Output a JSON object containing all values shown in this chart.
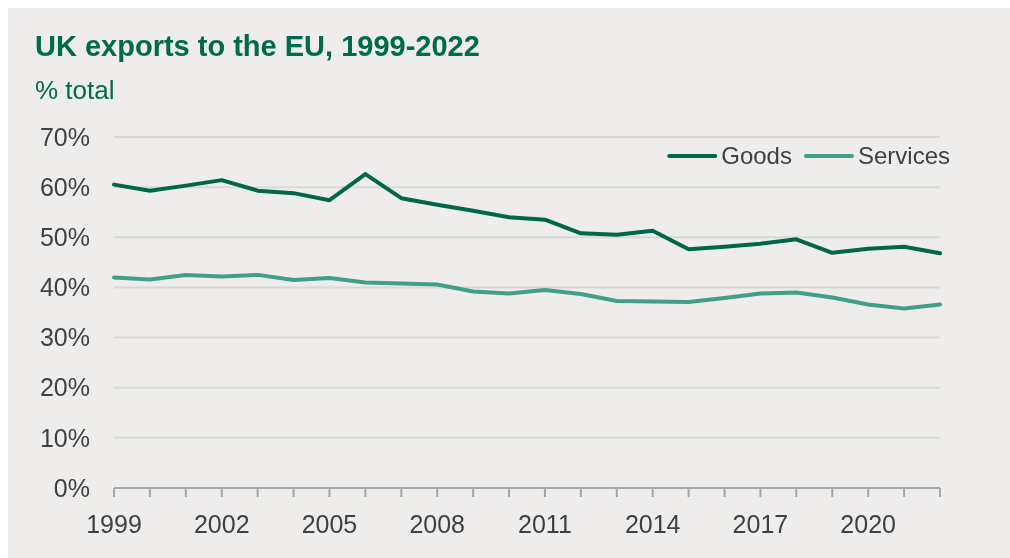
{
  "chart_data": {
    "type": "line",
    "title": "UK exports to the EU, 1999-2022",
    "ylabel": "% total",
    "x": [
      1999,
      2000,
      2001,
      2002,
      2003,
      2004,
      2005,
      2006,
      2007,
      2008,
      2009,
      2010,
      2011,
      2012,
      2013,
      2014,
      2015,
      2016,
      2017,
      2018,
      2019,
      2020,
      2021,
      2022
    ],
    "series": [
      {
        "name": "Goods",
        "color": "#00674a",
        "values": [
          60.5,
          59.3,
          60.3,
          61.4,
          59.3,
          58.8,
          57.4,
          62.6,
          57.8,
          56.5,
          55.3,
          54.0,
          53.5,
          50.8,
          50.5,
          51.3,
          47.6,
          48.1,
          48.7,
          49.6,
          46.9,
          47.7,
          48.1,
          46.8
        ]
      },
      {
        "name": "Services",
        "color": "#3f9f88",
        "values": [
          42.0,
          41.6,
          42.5,
          42.2,
          42.5,
          41.5,
          41.9,
          41.0,
          40.8,
          40.6,
          39.2,
          38.8,
          39.5,
          38.7,
          37.3,
          37.2,
          37.1,
          37.9,
          38.8,
          39.0,
          38.0,
          36.6,
          35.8,
          36.6
        ]
      }
    ],
    "xlim": [
      1999,
      2022
    ],
    "xticks": [
      1999,
      {
        "value": 2000,
        "label": null
      },
      {
        "value": 2001,
        "label": null
      },
      2002,
      {
        "value": 2003,
        "label": null
      },
      {
        "value": 2004,
        "label": null
      },
      2005,
      {
        "value": 2006,
        "label": null
      },
      {
        "value": 2007,
        "label": null
      },
      2008,
      {
        "value": 2009,
        "label": null
      },
      {
        "value": 2010,
        "label": null
      },
      2011,
      {
        "value": 2012,
        "label": null
      },
      {
        "value": 2013,
        "label": null
      },
      2014,
      {
        "value": 2015,
        "label": null
      },
      {
        "value": 2016,
        "label": null
      },
      2017,
      {
        "value": 2018,
        "label": null
      },
      {
        "value": 2019,
        "label": null
      },
      2020,
      {
        "value": 2021,
        "label": null
      },
      {
        "value": 2022,
        "label": null
      }
    ],
    "ylim": [
      0,
      70
    ],
    "yticks": [
      {
        "value": 0,
        "label": "0%"
      },
      {
        "value": 10,
        "label": "10%"
      },
      {
        "value": 20,
        "label": "20%"
      },
      {
        "value": 30,
        "label": "30%"
      },
      {
        "value": 40,
        "label": "40%"
      },
      {
        "value": 50,
        "label": "50%"
      },
      {
        "value": 60,
        "label": "60%"
      },
      {
        "value": 70,
        "label": "70%"
      }
    ],
    "grid": "y",
    "legend": "top right",
    "line_style": "solid"
  }
}
